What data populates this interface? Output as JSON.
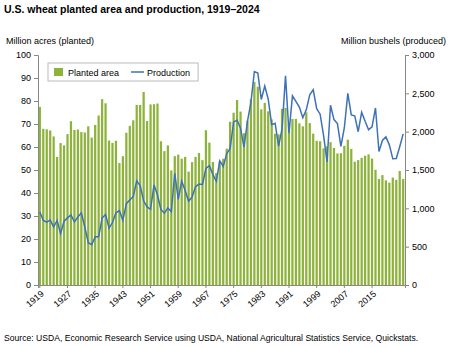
{
  "chart_data": {
    "type": "bar",
    "title": "U.S. wheat planted area and production, 1919–2024",
    "y_label": "Million acres (planted)",
    "y2_label": "Million bushels (produced)",
    "source": "Source: USDA, Economic Research Service using USDA, National Agricultural Statistics Service, Quickstats.",
    "categories": [
      "1919",
      null,
      null,
      null,
      null,
      null,
      null,
      null,
      "1927",
      null,
      null,
      null,
      null,
      null,
      null,
      null,
      "1935",
      null,
      null,
      null,
      null,
      null,
      null,
      null,
      "1943",
      null,
      null,
      null,
      null,
      null,
      null,
      null,
      "1951",
      null,
      null,
      null,
      null,
      null,
      null,
      null,
      "1959",
      null,
      null,
      null,
      null,
      null,
      null,
      null,
      "1967",
      null,
      null,
      null,
      null,
      null,
      null,
      null,
      "1975",
      null,
      null,
      null,
      null,
      null,
      null,
      null,
      "1983",
      null,
      null,
      null,
      null,
      null,
      null,
      null,
      "1991",
      null,
      null,
      null,
      null,
      null,
      null,
      null,
      "1999",
      null,
      null,
      null,
      null,
      null,
      null,
      null,
      "2007",
      null,
      null,
      null,
      null,
      null,
      null,
      null,
      "2015",
      null,
      null,
      null,
      null,
      null,
      null,
      null,
      null,
      null
    ],
    "series": [
      {
        "name": "Planted area",
        "type": "bar",
        "color": "#8db33a",
        "values": [
          77.4,
          67.9,
          67.7,
          67.2,
          64.6,
          55.7,
          61.7,
          60.7,
          65.6,
          71.2,
          67.4,
          67.6,
          66.5,
          66.3,
          69.0,
          64.1,
          69.6,
          73.7,
          80.8,
          79.0,
          62.8,
          61.8,
          62.7,
          53.0,
          56.0,
          66.2,
          69.2,
          71.6,
          78.3,
          78.3,
          83.9,
          71.3,
          78.5,
          78.6,
          78.9,
          62.5,
          58.2,
          60.7,
          49.8,
          56.0,
          56.7,
          54.9,
          55.7,
          49.3,
          53.4,
          55.7,
          57.4,
          54.3,
          67.3,
          61.9,
          53.5,
          48.7,
          53.8,
          54.9,
          59.3,
          71.0,
          74.9,
          80.4,
          75.4,
          66.0,
          71.4,
          80.8,
          88.3,
          86.2,
          76.4,
          79.2,
          75.5,
          72.0,
          65.8,
          65.5,
          76.6,
          77.0,
          69.9,
          72.2,
          72.2,
          70.3,
          69.0,
          75.1,
          70.4,
          65.8,
          62.7,
          62.5,
          59.4,
          60.3,
          62.1,
          59.6,
          57.2,
          57.3,
          60.5,
          63.2,
          59.2,
          53.6,
          54.3,
          55.3,
          56.2,
          56.8,
          55.0,
          50.1,
          46.1,
          47.8,
          45.5,
          44.5,
          46.7,
          45.7,
          49.6,
          46.1
        ]
      },
      {
        "name": "Production",
        "type": "line",
        "color": "#3d72b8",
        "axis": "y2",
        "values": [
          952,
          843,
          819,
          847,
          759,
          842,
          669,
          832,
          875,
          914,
          824,
          886,
          942,
          756,
          552,
          526,
          628,
          630,
          874,
          920,
          741,
          815,
          942,
          969,
          844,
          1060,
          1108,
          1153,
          1359,
          1295,
          1098,
          1019,
          988,
          1306,
          1173,
          984,
          937,
          1005,
          956,
          1457,
          1118,
          1355,
          1232,
          1092,
          1147,
          1283,
          1316,
          1312,
          1522,
          1557,
          1443,
          1352,
          1619,
          1546,
          1711,
          1782,
          2127,
          2149,
          2046,
          1798,
          2134,
          2381,
          2785,
          2765,
          2420,
          2595,
          2425,
          2091,
          2108,
          1812,
          2037,
          2730,
          1981,
          2467,
          2396,
          2321,
          2183,
          2285,
          2481,
          2547,
          2299,
          2228,
          1947,
          1606,
          2345,
          2158,
          2105,
          1808,
          2051,
          2499,
          2218,
          2207,
          1999,
          2252,
          2135,
          2026,
          2062,
          2309,
          1741,
          1885,
          1932,
          1828,
          1646,
          1650,
          1804,
          1971
        ]
      }
    ],
    "ylim": [
      0,
      100
    ],
    "yticks": [
      0,
      10,
      20,
      30,
      40,
      50,
      60,
      70,
      80,
      90,
      100
    ],
    "y2lim": [
      0,
      3000
    ],
    "y2ticks": [
      0,
      500,
      {
        "value": 1000,
        "label": "1,000"
      },
      {
        "value": 1500,
        "label": "1,500"
      },
      {
        "value": 2000,
        "label": "2,000"
      },
      {
        "value": 2500,
        "label": "2,500"
      },
      {
        "value": 3000,
        "label": "3,000"
      }
    ],
    "grid": false,
    "legend": "upper left"
  }
}
